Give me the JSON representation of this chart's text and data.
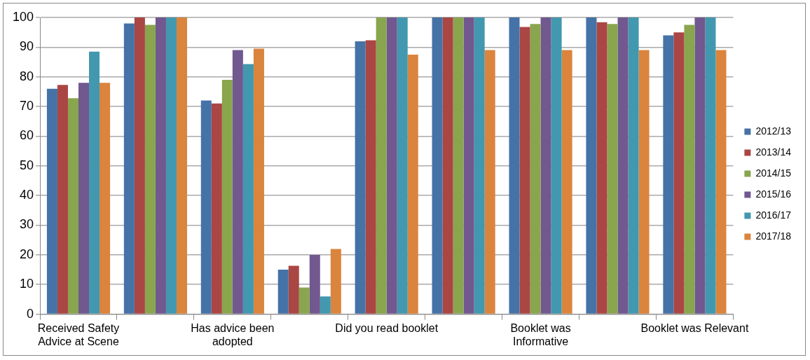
{
  "chart_data": {
    "type": "bar",
    "categories": [
      "Received Safety Advice at Scene",
      null,
      "Has advice been adopted",
      null,
      "Did you read booklet",
      null,
      "Booklet was Informative",
      null,
      "Booklet was Relevant"
    ],
    "series": [
      {
        "name": "2012/13",
        "color": "#4572a7",
        "values": [
          76,
          98,
          72,
          15,
          92,
          100,
          100,
          100,
          94
        ]
      },
      {
        "name": "2013/14",
        "color": "#aa4643",
        "values": [
          77.3,
          100,
          71,
          16.3,
          92.3,
          100,
          96.8,
          98.4,
          95
        ]
      },
      {
        "name": "2014/15",
        "color": "#89a54e",
        "values": [
          72.8,
          97.5,
          79,
          9,
          100,
          100,
          97.8,
          97.8,
          97.5
        ]
      },
      {
        "name": "2015/16",
        "color": "#71588f",
        "values": [
          78,
          100,
          89,
          20,
          100,
          100,
          100,
          100,
          100
        ]
      },
      {
        "name": "2016/17",
        "color": "#4198af",
        "values": [
          88.5,
          100,
          84.3,
          6,
          100,
          100,
          100,
          100,
          100
        ]
      },
      {
        "name": "2017/18",
        "color": "#db843d",
        "values": [
          78,
          100,
          89.5,
          22,
          87.5,
          89,
          89,
          89,
          89
        ]
      }
    ],
    "ylim": [
      0,
      100
    ],
    "yticks": [
      0,
      10,
      20,
      30,
      40,
      50,
      60,
      70,
      80,
      90,
      100
    ],
    "grid": "y",
    "legend": "right"
  }
}
